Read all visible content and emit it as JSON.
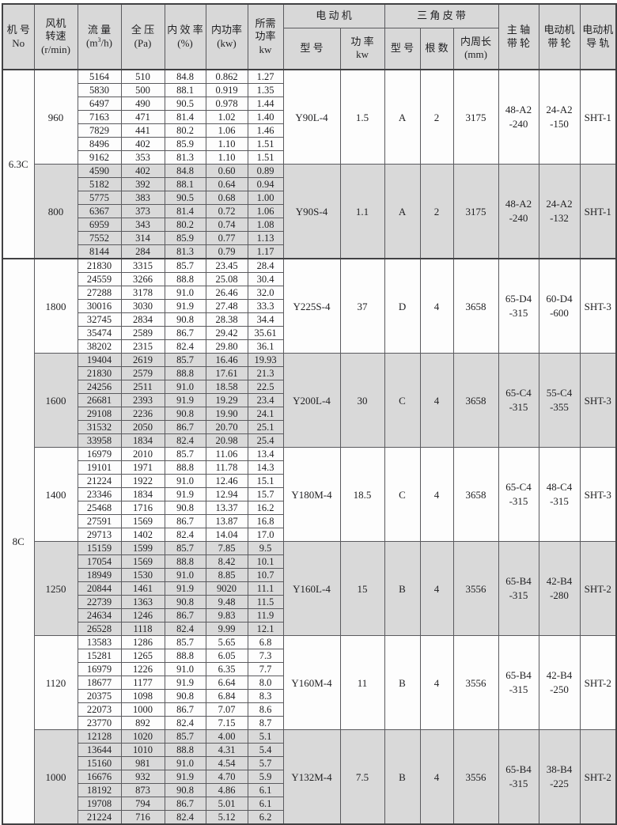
{
  "header": {
    "no": [
      "机 号",
      "No"
    ],
    "speed": [
      "风机",
      "转速",
      "(r/min)"
    ],
    "flow_name": "流 量",
    "flow_unit_pre": "(m",
    "flow_unit_sup": "3",
    "flow_unit_post": "/h)",
    "pressure": [
      "全 压",
      "(Pa)"
    ],
    "efficiency": [
      "内 效 率",
      "(%)"
    ],
    "internal_power": [
      "内功率",
      "(kw)"
    ],
    "required_power": [
      "所需",
      "功率",
      "kw"
    ],
    "motor_group": "电 动 机",
    "motor_model": "型 号",
    "motor_power": [
      "功 率",
      "kw"
    ],
    "belt_group": "三 角 皮 带",
    "belt_model": "型 号",
    "belt_count": "根 数",
    "belt_length": [
      "内周长",
      "(mm)"
    ],
    "main_pulley": [
      "主 轴",
      "带 轮"
    ],
    "motor_pulley": [
      "电动机",
      "带 轮"
    ],
    "motor_rail": [
      "电动机",
      "导 轨"
    ]
  },
  "colors": {
    "header_bg": "#d8d8d8",
    "shaded_row_bg": "#d9d9d9",
    "grid_line": "#5a5a5e",
    "frame": "#414143"
  },
  "sections": [
    {
      "no": "6.3C",
      "groups": [
        {
          "speed": "960",
          "shaded": false,
          "rows": [
            [
              "5164",
              "510",
              "84.8",
              "0.862",
              "1.27"
            ],
            [
              "5830",
              "500",
              "88.1",
              "0.919",
              "1.35"
            ],
            [
              "6497",
              "490",
              "90.5",
              "0.978",
              "1.44"
            ],
            [
              "7163",
              "471",
              "81.4",
              "1.02",
              "1.40"
            ],
            [
              "7829",
              "441",
              "80.2",
              "1.06",
              "1.46"
            ],
            [
              "8496",
              "402",
              "85.9",
              "1.10",
              "1.51"
            ],
            [
              "9162",
              "353",
              "81.3",
              "1.10",
              "1.51"
            ]
          ],
          "motor_model": "Y90L-4",
          "motor_kw": "1.5",
          "belt_model": "A",
          "belt_count": "2",
          "belt_length": "3175",
          "main_pulley": [
            "48-A2",
            "-240"
          ],
          "motor_pulley": [
            "24-A2",
            "-150"
          ],
          "rail": "SHT-1"
        },
        {
          "speed": "800",
          "shaded": true,
          "rows": [
            [
              "4590",
              "402",
              "84.8",
              "0.60",
              "0.89"
            ],
            [
              "5182",
              "392",
              "88.1",
              "0.64",
              "0.94"
            ],
            [
              "5775",
              "383",
              "90.5",
              "0.68",
              "1.00"
            ],
            [
              "6367",
              "373",
              "81.4",
              "0.72",
              "1.06"
            ],
            [
              "6959",
              "343",
              "80.2",
              "0.74",
              "1.08"
            ],
            [
              "7552",
              "314",
              "85.9",
              "0.77",
              "1.13"
            ],
            [
              "8144",
              "284",
              "81.3",
              "0.79",
              "1.17"
            ]
          ],
          "motor_model": "Y90S-4",
          "motor_kw": "1.1",
          "belt_model": "A",
          "belt_count": "2",
          "belt_length": "3175",
          "main_pulley": [
            "48-A2",
            "-240"
          ],
          "motor_pulley": [
            "24-A2",
            "-132"
          ],
          "rail": "SHT-1"
        }
      ]
    },
    {
      "no": "8C",
      "groups": [
        {
          "speed": "1800",
          "shaded": false,
          "rows": [
            [
              "21830",
              "3315",
              "85.7",
              "23.45",
              "28.4"
            ],
            [
              "24559",
              "3266",
              "88.8",
              "25.08",
              "30.4"
            ],
            [
              "27288",
              "3178",
              "91.0",
              "26.46",
              "32.0"
            ],
            [
              "30016",
              "3030",
              "91.9",
              "27.48",
              "33.3"
            ],
            [
              "32745",
              "2834",
              "90.8",
              "28.38",
              "34.4"
            ],
            [
              "35474",
              "2589",
              "86.7",
              "29.42",
              "35.61"
            ],
            [
              "38202",
              "2315",
              "82.4",
              "29.80",
              "36.1"
            ]
          ],
          "motor_model": "Y225S-4",
          "motor_kw": "37",
          "belt_model": "D",
          "belt_count": "4",
          "belt_length": "3658",
          "main_pulley": [
            "65-D4",
            "-315"
          ],
          "motor_pulley": [
            "60-D4",
            "-600"
          ],
          "rail": "SHT-3"
        },
        {
          "speed": "1600",
          "shaded": true,
          "rows": [
            [
              "19404",
              "2619",
              "85.7",
              "16.46",
              "19.93"
            ],
            [
              "21830",
              "2579",
              "88.8",
              "17.61",
              "21.3"
            ],
            [
              "24256",
              "2511",
              "91.0",
              "18.58",
              "22.5"
            ],
            [
              "26681",
              "2393",
              "91.9",
              "19.29",
              "23.4"
            ],
            [
              "29108",
              "2236",
              "90.8",
              "19.90",
              "24.1"
            ],
            [
              "31532",
              "2050",
              "86.7",
              "20.70",
              "25.1"
            ],
            [
              "33958",
              "1834",
              "82.4",
              "20.98",
              "25.4"
            ]
          ],
          "motor_model": "Y200L-4",
          "motor_kw": "30",
          "belt_model": "C",
          "belt_count": "4",
          "belt_length": "3658",
          "main_pulley": [
            "65-C4",
            "-315"
          ],
          "motor_pulley": [
            "55-C4",
            "-355"
          ],
          "rail": "SHT-3"
        },
        {
          "speed": "1400",
          "shaded": false,
          "rows": [
            [
              "16979",
              "2010",
              "85.7",
              "11.06",
              "13.4"
            ],
            [
              "19101",
              "1971",
              "88.8",
              "11.78",
              "14.3"
            ],
            [
              "21224",
              "1922",
              "91.0",
              "12.46",
              "15.1"
            ],
            [
              "23346",
              "1834",
              "91.9",
              "12.94",
              "15.7"
            ],
            [
              "25468",
              "1716",
              "90.8",
              "13.37",
              "16.2"
            ],
            [
              "27591",
              "1569",
              "86.7",
              "13.87",
              "16.8"
            ],
            [
              "29713",
              "1402",
              "82.4",
              "14.04",
              "17.0"
            ]
          ],
          "motor_model": "Y180M-4",
          "motor_kw": "18.5",
          "belt_model": "C",
          "belt_count": "4",
          "belt_length": "3658",
          "main_pulley": [
            "65-C4",
            "-315"
          ],
          "motor_pulley": [
            "48-C4",
            "-315"
          ],
          "rail": "SHT-3"
        },
        {
          "speed": "1250",
          "shaded": true,
          "rows": [
            [
              "15159",
              "1599",
              "85.7",
              "7.85",
              "9.5"
            ],
            [
              "17054",
              "1569",
              "88.8",
              "8.42",
              "10.1"
            ],
            [
              "18949",
              "1530",
              "91.0",
              "8.85",
              "10.7"
            ],
            [
              "20844",
              "1461",
              "91.9",
              "9020",
              "11.1"
            ],
            [
              "22739",
              "1363",
              "90.8",
              "9.48",
              "11.5"
            ],
            [
              "24634",
              "1246",
              "86.7",
              "9.83",
              "11.9"
            ],
            [
              "26528",
              "1118",
              "82.4",
              "9.99",
              "12.1"
            ]
          ],
          "motor_model": "Y160L-4",
          "motor_kw": "15",
          "belt_model": "B",
          "belt_count": "4",
          "belt_length": "3556",
          "main_pulley": [
            "65-B4",
            "-315"
          ],
          "motor_pulley": [
            "42-B4",
            "-280"
          ],
          "rail": "SHT-2"
        },
        {
          "speed": "1120",
          "shaded": false,
          "rows": [
            [
              "13583",
              "1286",
              "85.7",
              "5.65",
              "6.8"
            ],
            [
              "15281",
              "1265",
              "88.8",
              "6.05",
              "7.3"
            ],
            [
              "16979",
              "1226",
              "91.0",
              "6.35",
              "7.7"
            ],
            [
              "18677",
              "1177",
              "91.9",
              "6.64",
              "8.0"
            ],
            [
              "20375",
              "1098",
              "90.8",
              "6.84",
              "8.3"
            ],
            [
              "22073",
              "1000",
              "86.7",
              "7.07",
              "8.6"
            ],
            [
              "23770",
              "892",
              "82.4",
              "7.15",
              "8.7"
            ]
          ],
          "motor_model": "Y160M-4",
          "motor_kw": "11",
          "belt_model": "B",
          "belt_count": "4",
          "belt_length": "3556",
          "main_pulley": [
            "65-B4",
            "-315"
          ],
          "motor_pulley": [
            "42-B4",
            "-250"
          ],
          "rail": "SHT-2"
        },
        {
          "speed": "1000",
          "shaded": true,
          "rows": [
            [
              "12128",
              "1020",
              "85.7",
              "4.00",
              "5.1"
            ],
            [
              "13644",
              "1010",
              "88.8",
              "4.31",
              "5.4"
            ],
            [
              "15160",
              "981",
              "91.0",
              "4.54",
              "5.7"
            ],
            [
              "16676",
              "932",
              "91.9",
              "4.70",
              "5.9"
            ],
            [
              "18192",
              "873",
              "90.8",
              "4.86",
              "6.1"
            ],
            [
              "19708",
              "794",
              "86.7",
              "5.01",
              "6.1"
            ],
            [
              "21224",
              "716",
              "82.4",
              "5.12",
              "6.2"
            ]
          ],
          "motor_model": "Y132M-4",
          "motor_kw": "7.5",
          "belt_model": "B",
          "belt_count": "4",
          "belt_length": "3556",
          "main_pulley": [
            "65-B4",
            "-315"
          ],
          "motor_pulley": [
            "38-B4",
            "-225"
          ],
          "rail": "SHT-2"
        }
      ]
    }
  ]
}
